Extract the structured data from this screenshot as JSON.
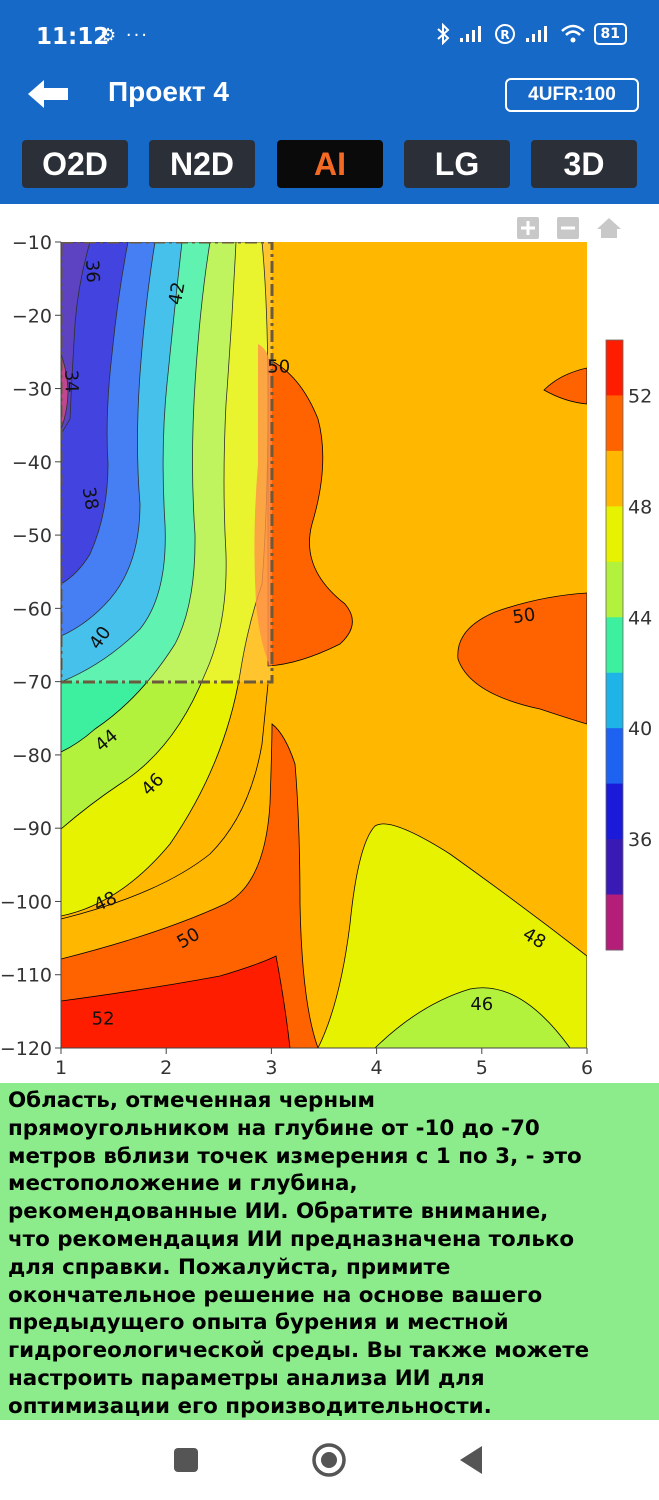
{
  "status_bar": {
    "time": "11:12",
    "left_icons": "⚙ ···",
    "battery": "81"
  },
  "app_bar": {
    "title": "Проект 4",
    "badge": "4UFR:100"
  },
  "tabs": [
    {
      "label": "O2D",
      "active": false
    },
    {
      "label": "N2D",
      "active": false
    },
    {
      "label": "AI",
      "active": true
    },
    {
      "label": "LG",
      "active": false
    },
    {
      "label": "3D",
      "active": false
    }
  ],
  "chart_data": {
    "type": "heatmap",
    "x_ticks": [
      "1",
      "2",
      "3",
      "4",
      "5",
      "6"
    ],
    "y_ticks": [
      "−10",
      "−20",
      "−30",
      "−40",
      "−50",
      "−60",
      "−70",
      "−80",
      "−90",
      "−100",
      "−110",
      "−120"
    ],
    "xlim": [
      1,
      6
    ],
    "ylim": [
      -120,
      -10
    ],
    "colorbar_ticks": [
      "52",
      "48",
      "44",
      "40",
      "36"
    ],
    "contour_labels": [
      {
        "text": "36",
        "x": 1.3,
        "y": -14,
        "angle": 88
      },
      {
        "text": "42",
        "x": 2.1,
        "y": -17,
        "angle": -80
      },
      {
        "text": "50",
        "x": 3.07,
        "y": -27,
        "angle": 0
      },
      {
        "text": "34",
        "x": 1.1,
        "y": -29,
        "angle": 88
      },
      {
        "text": "38",
        "x": 1.28,
        "y": -45,
        "angle": 80
      },
      {
        "text": "40",
        "x": 1.37,
        "y": -64,
        "angle": -55
      },
      {
        "text": "50",
        "x": 5.4,
        "y": -61,
        "angle": -8
      },
      {
        "text": "44",
        "x": 1.43,
        "y": -78,
        "angle": -40
      },
      {
        "text": "46",
        "x": 1.87,
        "y": -84,
        "angle": -45
      },
      {
        "text": "48",
        "x": 1.42,
        "y": -100,
        "angle": -25
      },
      {
        "text": "50",
        "x": 2.21,
        "y": -105,
        "angle": -30
      },
      {
        "text": "48",
        "x": 5.5,
        "y": -105,
        "angle": 30
      },
      {
        "text": "46",
        "x": 5.0,
        "y": -114,
        "angle": 0
      },
      {
        "text": "52",
        "x": 1.4,
        "y": -116,
        "angle": 0
      }
    ],
    "ai_recommendation_rect": {
      "x_range": [
        1,
        3
      ],
      "y_range": [
        -70,
        -10
      ]
    },
    "levels": [
      {
        "value": 53,
        "color": "#ff1d00"
      },
      {
        "value": 51,
        "color": "#ff6300"
      },
      {
        "value": 49,
        "color": "#ffb700"
      },
      {
        "value": 47,
        "color": "#e6f200"
      },
      {
        "value": 45,
        "color": "#b2f23c"
      },
      {
        "value": 43,
        "color": "#3cf0a0"
      },
      {
        "value": 41,
        "color": "#1eb4e8"
      },
      {
        "value": 39,
        "color": "#1e62f2"
      },
      {
        "value": 37,
        "color": "#1a1ad8"
      },
      {
        "value": 35,
        "color": "#3a1ab4"
      },
      {
        "value": 33,
        "color": "#b41e78"
      }
    ]
  },
  "info_text": "Область, отмеченная черным прямоугольником на глубине от -10 до -70 метров вблизи точек измерения с 1 по 3, - это местоположение и глубина, рекомендованные ИИ. Обратите внимание, что рекомендация ИИ предназначена только для справки. Пожалуйста, примите окончательное решение на основе вашего предыдущего опыта бурения и местной гидрогеологической среды. Вы также можете настроить параметры анализа ИИ для оптимизации его производительности.",
  "info_lines": [
    "Область, отмеченная черным",
    "прямоугольником на глубине от -10 до -70",
    "метров вблизи точек измерения с 1 по 3, - это",
    "местоположение и глубина,",
    "рекомендованные ИИ. Обратите внимание,",
    "что рекомендация ИИ предназначена только",
    "для справки. Пожалуйста, примите",
    "окончательное решение на основе вашего",
    "предыдущего опыта бурения и местной",
    "гидрогеологической среды. Вы также можете",
    "настроить параметры анализа ИИ для",
    "оптимизации его производительности."
  ],
  "icons": {
    "zoom_in": "zoom-in-icon",
    "zoom_out": "zoom-out-icon",
    "home": "home-icon",
    "back": "arrow-left-icon",
    "nav_recents": "square-icon",
    "nav_home": "circle-icon",
    "nav_back": "triangle-icon"
  }
}
